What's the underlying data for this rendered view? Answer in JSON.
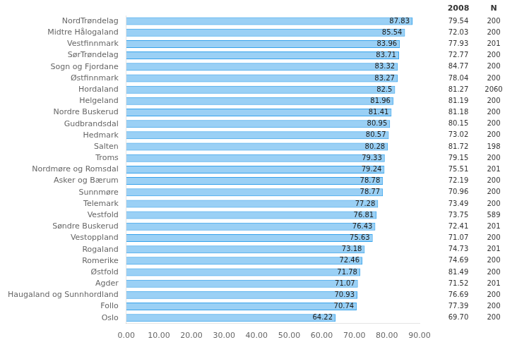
{
  "chart_data": {
    "type": "bar",
    "orientation": "horizontal",
    "categories": [
      "NordTrøndelag",
      "Midtre Hålogaland",
      "Vestfinnmark",
      "SørTrøndelag",
      "Sogn og Fjordane",
      "Østfinnmark",
      "Hordaland",
      "Helgeland",
      "Nordre Buskerud",
      "Gudbrandsdal",
      "Hedmark",
      "Salten",
      "Troms",
      "Nordmøre og Romsdal",
      "Asker og Bærum",
      "Sunnmøre",
      "Telemark",
      "Vestfold",
      "Søndre Buskerud",
      "Vestoppland",
      "Rogaland",
      "Romerike",
      "Østfold",
      "Agder",
      "Haugaland og Sunnhordland",
      "Follo",
      "Oslo"
    ],
    "values": [
      87.83,
      85.54,
      83.96,
      83.71,
      83.32,
      83.27,
      82.5,
      81.96,
      81.41,
      80.95,
      80.57,
      80.28,
      79.33,
      79.24,
      78.78,
      78.77,
      77.28,
      76.81,
      76.43,
      75.63,
      73.18,
      72.46,
      71.78,
      71.07,
      70.93,
      70.74,
      64.22
    ],
    "data_labels": true,
    "xlim": [
      0,
      90
    ],
    "xticks": [
      {
        "value": 0,
        "label": "0.00"
      },
      {
        "value": 10,
        "label": "10.00"
      },
      {
        "value": 20,
        "label": "20.00"
      },
      {
        "value": 30,
        "label": "30.00"
      },
      {
        "value": 40,
        "label": "40.00"
      },
      {
        "value": 50,
        "label": "50.00"
      },
      {
        "value": 60,
        "label": "60.00"
      },
      {
        "value": 70,
        "label": "70.00"
      },
      {
        "value": 80,
        "label": "80.00"
      },
      {
        "value": 90,
        "label": "90.00"
      }
    ],
    "grid": false,
    "columns": [
      {
        "name": "2008",
        "values": [
          79.54,
          72.03,
          77.93,
          72.77,
          84.77,
          78.04,
          81.27,
          81.19,
          81.18,
          80.15,
          73.02,
          81.72,
          79.15,
          75.51,
          72.19,
          70.96,
          73.49,
          73.75,
          72.41,
          71.07,
          74.73,
          74.69,
          81.49,
          71.52,
          76.69,
          77.39,
          69.7
        ],
        "value_labels": [
          "79.54",
          "72.03",
          "77.93",
          "72.77",
          "84.77",
          "78.04",
          "81.27",
          "81.19",
          "81.18",
          "80.15",
          "73.02",
          "81.72",
          "79.15",
          "75.51",
          "72.19",
          "70.96",
          "73.49",
          "73.75",
          "72.41",
          "71.07",
          "74.73",
          "74.69",
          "81.49",
          "71.52",
          "76.69",
          "77.39",
          "69.70"
        ]
      },
      {
        "name": "N",
        "values": [
          200,
          200,
          201,
          200,
          200,
          200,
          2060,
          200,
          200,
          200,
          200,
          198,
          200,
          201,
          200,
          200,
          200,
          589,
          201,
          200,
          201,
          200,
          200,
          201,
          200,
          200,
          200
        ]
      }
    ]
  }
}
